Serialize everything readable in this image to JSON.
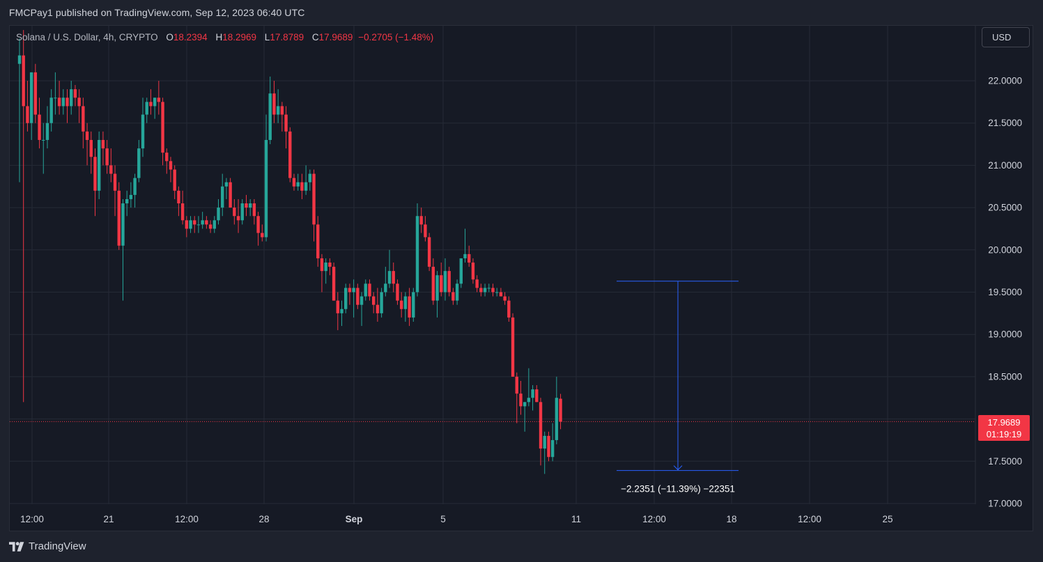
{
  "header": {
    "published": "FMCPay1 published on TradingView.com, Sep 12, 2023 06:40 UTC"
  },
  "legend": {
    "symbol": "Solana / U.S. Dollar, 4h, CRYPTO",
    "o_label": "O",
    "o_value": "18.2394",
    "h_label": "H",
    "h_value": "18.2969",
    "l_label": "L",
    "l_value": "17.8789",
    "c_label": "C",
    "c_value": "17.9689",
    "change": "−0.2705 (−1.48%)"
  },
  "currency_button": "USD",
  "price_tag": {
    "price": "17.9689",
    "countdown": "01:19:19"
  },
  "footer": {
    "brand": "TradingView"
  },
  "colors": {
    "up": "#26a69a",
    "down": "#f23645",
    "measure": "#2962ff",
    "background": "#161a25",
    "grid": "#252a36"
  },
  "chart_data": {
    "type": "candlestick",
    "title": "Solana / U.S. Dollar, 4h, CRYPTO",
    "ylim": [
      17.0,
      22.5
    ],
    "y_ticks": [
      "22.0000",
      "21.5000",
      "21.0000",
      "20.5000",
      "20.0000",
      "19.5000",
      "19.0000",
      "18.5000",
      "18.0000",
      "17.5000",
      "17.0000"
    ],
    "x_ticks": [
      "12:00",
      "21",
      "12:00",
      "28",
      "Sep",
      "5",
      "11",
      "12:00",
      "18",
      "12:00",
      "25"
    ],
    "last_price": 17.9689,
    "measure": {
      "from": 19.63,
      "to": 17.39,
      "label": "−2.2351 (−11.39%) −22351"
    },
    "grid": true,
    "candles": [
      {
        "o": 22.2,
        "h": 22.5,
        "l": 20.8,
        "c": 22.3
      },
      {
        "o": 22.3,
        "h": 22.6,
        "l": 18.2,
        "c": 21.7
      },
      {
        "o": 21.7,
        "h": 22.0,
        "l": 21.4,
        "c": 21.5
      },
      {
        "o": 21.5,
        "h": 22.1,
        "l": 21.3,
        "c": 22.1
      },
      {
        "o": 22.1,
        "h": 22.2,
        "l": 21.5,
        "c": 21.6
      },
      {
        "o": 21.6,
        "h": 21.8,
        "l": 21.2,
        "c": 21.3
      },
      {
        "o": 21.3,
        "h": 21.5,
        "l": 20.9,
        "c": 21.3
      },
      {
        "o": 21.3,
        "h": 21.7,
        "l": 21.2,
        "c": 21.5
      },
      {
        "o": 21.5,
        "h": 21.9,
        "l": 21.4,
        "c": 21.8
      },
      {
        "o": 21.8,
        "h": 22.1,
        "l": 21.6,
        "c": 21.8
      },
      {
        "o": 21.8,
        "h": 22.0,
        "l": 21.6,
        "c": 21.7
      },
      {
        "o": 21.7,
        "h": 21.9,
        "l": 21.6,
        "c": 21.8
      },
      {
        "o": 21.8,
        "h": 21.9,
        "l": 21.5,
        "c": 21.7
      },
      {
        "o": 21.7,
        "h": 22.0,
        "l": 21.6,
        "c": 21.9
      },
      {
        "o": 21.9,
        "h": 21.95,
        "l": 21.7,
        "c": 21.8
      },
      {
        "o": 21.8,
        "h": 21.9,
        "l": 21.5,
        "c": 21.7
      },
      {
        "o": 21.7,
        "h": 21.8,
        "l": 21.2,
        "c": 21.4
      },
      {
        "o": 21.4,
        "h": 21.5,
        "l": 21.0,
        "c": 21.3
      },
      {
        "o": 21.3,
        "h": 21.4,
        "l": 20.9,
        "c": 21.1
      },
      {
        "o": 21.1,
        "h": 21.2,
        "l": 20.4,
        "c": 20.7
      },
      {
        "o": 20.7,
        "h": 21.4,
        "l": 20.6,
        "c": 21.3
      },
      {
        "o": 21.3,
        "h": 21.4,
        "l": 21.0,
        "c": 21.2
      },
      {
        "o": 21.2,
        "h": 21.3,
        "l": 20.9,
        "c": 21.0
      },
      {
        "o": 21.0,
        "h": 21.2,
        "l": 20.8,
        "c": 20.9
      },
      {
        "o": 20.9,
        "h": 21.0,
        "l": 20.4,
        "c": 20.7
      },
      {
        "o": 20.7,
        "h": 20.8,
        "l": 20.0,
        "c": 20.05
      },
      {
        "o": 20.05,
        "h": 20.6,
        "l": 19.4,
        "c": 20.55
      },
      {
        "o": 20.55,
        "h": 20.7,
        "l": 20.4,
        "c": 20.6
      },
      {
        "o": 20.6,
        "h": 20.8,
        "l": 20.5,
        "c": 20.65
      },
      {
        "o": 20.65,
        "h": 20.9,
        "l": 20.5,
        "c": 20.85
      },
      {
        "o": 20.85,
        "h": 21.3,
        "l": 20.8,
        "c": 21.2
      },
      {
        "o": 21.2,
        "h": 21.8,
        "l": 21.1,
        "c": 21.6
      },
      {
        "o": 21.6,
        "h": 21.8,
        "l": 21.5,
        "c": 21.75
      },
      {
        "o": 21.75,
        "h": 21.9,
        "l": 21.6,
        "c": 21.7
      },
      {
        "o": 21.7,
        "h": 21.8,
        "l": 21.55,
        "c": 21.8
      },
      {
        "o": 21.8,
        "h": 22.0,
        "l": 21.6,
        "c": 21.75
      },
      {
        "o": 21.75,
        "h": 21.8,
        "l": 21.0,
        "c": 21.15
      },
      {
        "o": 21.15,
        "h": 21.2,
        "l": 20.9,
        "c": 21.05
      },
      {
        "o": 21.05,
        "h": 21.1,
        "l": 20.8,
        "c": 20.95
      },
      {
        "o": 20.95,
        "h": 21.0,
        "l": 20.6,
        "c": 20.7
      },
      {
        "o": 20.7,
        "h": 20.75,
        "l": 20.4,
        "c": 20.55
      },
      {
        "o": 20.55,
        "h": 20.7,
        "l": 20.3,
        "c": 20.35
      },
      {
        "o": 20.35,
        "h": 20.4,
        "l": 20.15,
        "c": 20.25
      },
      {
        "o": 20.25,
        "h": 20.4,
        "l": 20.2,
        "c": 20.35
      },
      {
        "o": 20.35,
        "h": 20.4,
        "l": 20.2,
        "c": 20.3
      },
      {
        "o": 20.3,
        "h": 20.4,
        "l": 20.2,
        "c": 20.3
      },
      {
        "o": 20.3,
        "h": 20.45,
        "l": 20.25,
        "c": 20.35
      },
      {
        "o": 20.35,
        "h": 20.4,
        "l": 20.25,
        "c": 20.3
      },
      {
        "o": 20.3,
        "h": 20.35,
        "l": 20.2,
        "c": 20.25
      },
      {
        "o": 20.25,
        "h": 20.4,
        "l": 20.2,
        "c": 20.35
      },
      {
        "o": 20.35,
        "h": 20.6,
        "l": 20.3,
        "c": 20.5
      },
      {
        "o": 20.5,
        "h": 20.9,
        "l": 20.4,
        "c": 20.75
      },
      {
        "o": 20.75,
        "h": 20.85,
        "l": 20.6,
        "c": 20.8
      },
      {
        "o": 20.8,
        "h": 20.85,
        "l": 20.5,
        "c": 20.5
      },
      {
        "o": 20.5,
        "h": 20.6,
        "l": 20.3,
        "c": 20.4
      },
      {
        "o": 20.4,
        "h": 20.6,
        "l": 20.2,
        "c": 20.35
      },
      {
        "o": 20.35,
        "h": 20.6,
        "l": 20.3,
        "c": 20.55
      },
      {
        "o": 20.55,
        "h": 20.65,
        "l": 20.4,
        "c": 20.5
      },
      {
        "o": 20.5,
        "h": 20.6,
        "l": 20.4,
        "c": 20.55
      },
      {
        "o": 20.55,
        "h": 20.6,
        "l": 20.3,
        "c": 20.4
      },
      {
        "o": 20.4,
        "h": 20.45,
        "l": 20.05,
        "c": 20.2
      },
      {
        "o": 20.2,
        "h": 20.3,
        "l": 20.1,
        "c": 20.15
      },
      {
        "o": 20.15,
        "h": 21.6,
        "l": 20.1,
        "c": 21.3
      },
      {
        "o": 21.3,
        "h": 22.05,
        "l": 21.25,
        "c": 21.85
      },
      {
        "o": 21.85,
        "h": 22.0,
        "l": 21.5,
        "c": 21.6
      },
      {
        "o": 21.6,
        "h": 21.9,
        "l": 21.5,
        "c": 21.7
      },
      {
        "o": 21.7,
        "h": 21.75,
        "l": 21.4,
        "c": 21.6
      },
      {
        "o": 21.6,
        "h": 21.7,
        "l": 21.2,
        "c": 21.4
      },
      {
        "o": 21.4,
        "h": 21.45,
        "l": 20.8,
        "c": 20.85
      },
      {
        "o": 20.85,
        "h": 20.9,
        "l": 20.7,
        "c": 20.75
      },
      {
        "o": 20.75,
        "h": 20.9,
        "l": 20.7,
        "c": 20.8
      },
      {
        "o": 20.8,
        "h": 20.9,
        "l": 20.6,
        "c": 20.7
      },
      {
        "o": 20.7,
        "h": 21.0,
        "l": 20.65,
        "c": 20.8
      },
      {
        "o": 20.8,
        "h": 20.95,
        "l": 20.7,
        "c": 20.9
      },
      {
        "o": 20.9,
        "h": 20.95,
        "l": 20.1,
        "c": 20.3
      },
      {
        "o": 20.3,
        "h": 20.4,
        "l": 19.8,
        "c": 19.9
      },
      {
        "o": 19.9,
        "h": 19.95,
        "l": 19.5,
        "c": 19.75
      },
      {
        "o": 19.75,
        "h": 19.9,
        "l": 19.6,
        "c": 19.85
      },
      {
        "o": 19.85,
        "h": 19.9,
        "l": 19.7,
        "c": 19.8
      },
      {
        "o": 19.8,
        "h": 19.85,
        "l": 19.4,
        "c": 19.4
      },
      {
        "o": 19.4,
        "h": 19.5,
        "l": 19.05,
        "c": 19.25
      },
      {
        "o": 19.25,
        "h": 19.4,
        "l": 19.1,
        "c": 19.3
      },
      {
        "o": 19.3,
        "h": 19.6,
        "l": 19.25,
        "c": 19.55
      },
      {
        "o": 19.55,
        "h": 19.6,
        "l": 19.35,
        "c": 19.5
      },
      {
        "o": 19.5,
        "h": 19.65,
        "l": 19.2,
        "c": 19.55
      },
      {
        "o": 19.55,
        "h": 19.6,
        "l": 19.3,
        "c": 19.35
      },
      {
        "o": 19.35,
        "h": 19.5,
        "l": 19.1,
        "c": 19.45
      },
      {
        "o": 19.45,
        "h": 19.65,
        "l": 19.4,
        "c": 19.6
      },
      {
        "o": 19.6,
        "h": 19.65,
        "l": 19.4,
        "c": 19.45
      },
      {
        "o": 19.45,
        "h": 19.5,
        "l": 19.25,
        "c": 19.35
      },
      {
        "o": 19.35,
        "h": 19.55,
        "l": 19.15,
        "c": 19.25
      },
      {
        "o": 19.25,
        "h": 19.55,
        "l": 19.2,
        "c": 19.5
      },
      {
        "o": 19.5,
        "h": 19.8,
        "l": 19.45,
        "c": 19.6
      },
      {
        "o": 19.6,
        "h": 20.0,
        "l": 19.55,
        "c": 19.75
      },
      {
        "o": 19.75,
        "h": 19.85,
        "l": 19.5,
        "c": 19.6
      },
      {
        "o": 19.6,
        "h": 19.65,
        "l": 19.35,
        "c": 19.4
      },
      {
        "o": 19.4,
        "h": 19.5,
        "l": 19.2,
        "c": 19.3
      },
      {
        "o": 19.3,
        "h": 19.5,
        "l": 19.15,
        "c": 19.45
      },
      {
        "o": 19.45,
        "h": 19.55,
        "l": 19.1,
        "c": 19.2
      },
      {
        "o": 19.2,
        "h": 19.55,
        "l": 19.15,
        "c": 19.5
      },
      {
        "o": 19.5,
        "h": 20.55,
        "l": 19.45,
        "c": 20.4
      },
      {
        "o": 20.4,
        "h": 20.5,
        "l": 20.2,
        "c": 20.3
      },
      {
        "o": 20.3,
        "h": 20.4,
        "l": 20.1,
        "c": 20.15
      },
      {
        "o": 20.15,
        "h": 20.2,
        "l": 19.75,
        "c": 19.8
      },
      {
        "o": 19.8,
        "h": 19.9,
        "l": 19.35,
        "c": 19.4
      },
      {
        "o": 19.4,
        "h": 19.75,
        "l": 19.2,
        "c": 19.7
      },
      {
        "o": 19.7,
        "h": 19.85,
        "l": 19.45,
        "c": 19.5
      },
      {
        "o": 19.5,
        "h": 19.9,
        "l": 19.4,
        "c": 19.75
      },
      {
        "o": 19.75,
        "h": 19.8,
        "l": 19.45,
        "c": 19.5
      },
      {
        "o": 19.5,
        "h": 19.55,
        "l": 19.35,
        "c": 19.4
      },
      {
        "o": 19.4,
        "h": 19.65,
        "l": 19.35,
        "c": 19.6
      },
      {
        "o": 19.6,
        "h": 19.9,
        "l": 19.55,
        "c": 19.9
      },
      {
        "o": 19.9,
        "h": 20.25,
        "l": 19.85,
        "c": 19.95
      },
      {
        "o": 19.95,
        "h": 20.05,
        "l": 19.8,
        "c": 19.85
      },
      {
        "o": 19.85,
        "h": 19.9,
        "l": 19.6,
        "c": 19.65
      },
      {
        "o": 19.65,
        "h": 19.7,
        "l": 19.5,
        "c": 19.55
      },
      {
        "o": 19.55,
        "h": 19.6,
        "l": 19.45,
        "c": 19.5
      },
      {
        "o": 19.5,
        "h": 19.6,
        "l": 19.45,
        "c": 19.55
      },
      {
        "o": 19.55,
        "h": 19.6,
        "l": 19.5,
        "c": 19.55
      },
      {
        "o": 19.55,
        "h": 19.6,
        "l": 19.45,
        "c": 19.5
      },
      {
        "o": 19.5,
        "h": 19.55,
        "l": 19.45,
        "c": 19.5
      },
      {
        "o": 19.5,
        "h": 19.55,
        "l": 19.45,
        "c": 19.45
      },
      {
        "o": 19.45,
        "h": 19.5,
        "l": 19.35,
        "c": 19.4
      },
      {
        "o": 19.4,
        "h": 19.45,
        "l": 19.15,
        "c": 19.2
      },
      {
        "o": 19.2,
        "h": 19.25,
        "l": 18.5,
        "c": 18.5
      },
      {
        "o": 18.5,
        "h": 18.55,
        "l": 17.95,
        "c": 18.3
      },
      {
        "o": 18.3,
        "h": 18.45,
        "l": 18.05,
        "c": 18.15
      },
      {
        "o": 18.15,
        "h": 18.2,
        "l": 17.85,
        "c": 18.2
      },
      {
        "o": 18.2,
        "h": 18.6,
        "l": 18.15,
        "c": 18.25
      },
      {
        "o": 18.25,
        "h": 18.4,
        "l": 18.1,
        "c": 18.35
      },
      {
        "o": 18.35,
        "h": 18.4,
        "l": 18.2,
        "c": 18.2
      },
      {
        "o": 18.2,
        "h": 18.25,
        "l": 17.45,
        "c": 17.65
      },
      {
        "o": 17.65,
        "h": 17.85,
        "l": 17.35,
        "c": 17.8
      },
      {
        "o": 17.8,
        "h": 17.85,
        "l": 17.5,
        "c": 17.55
      },
      {
        "o": 17.55,
        "h": 17.95,
        "l": 17.5,
        "c": 17.75
      },
      {
        "o": 17.75,
        "h": 18.5,
        "l": 17.7,
        "c": 18.25
      },
      {
        "o": 18.2394,
        "h": 18.2969,
        "l": 17.8789,
        "c": 17.9689
      }
    ]
  }
}
